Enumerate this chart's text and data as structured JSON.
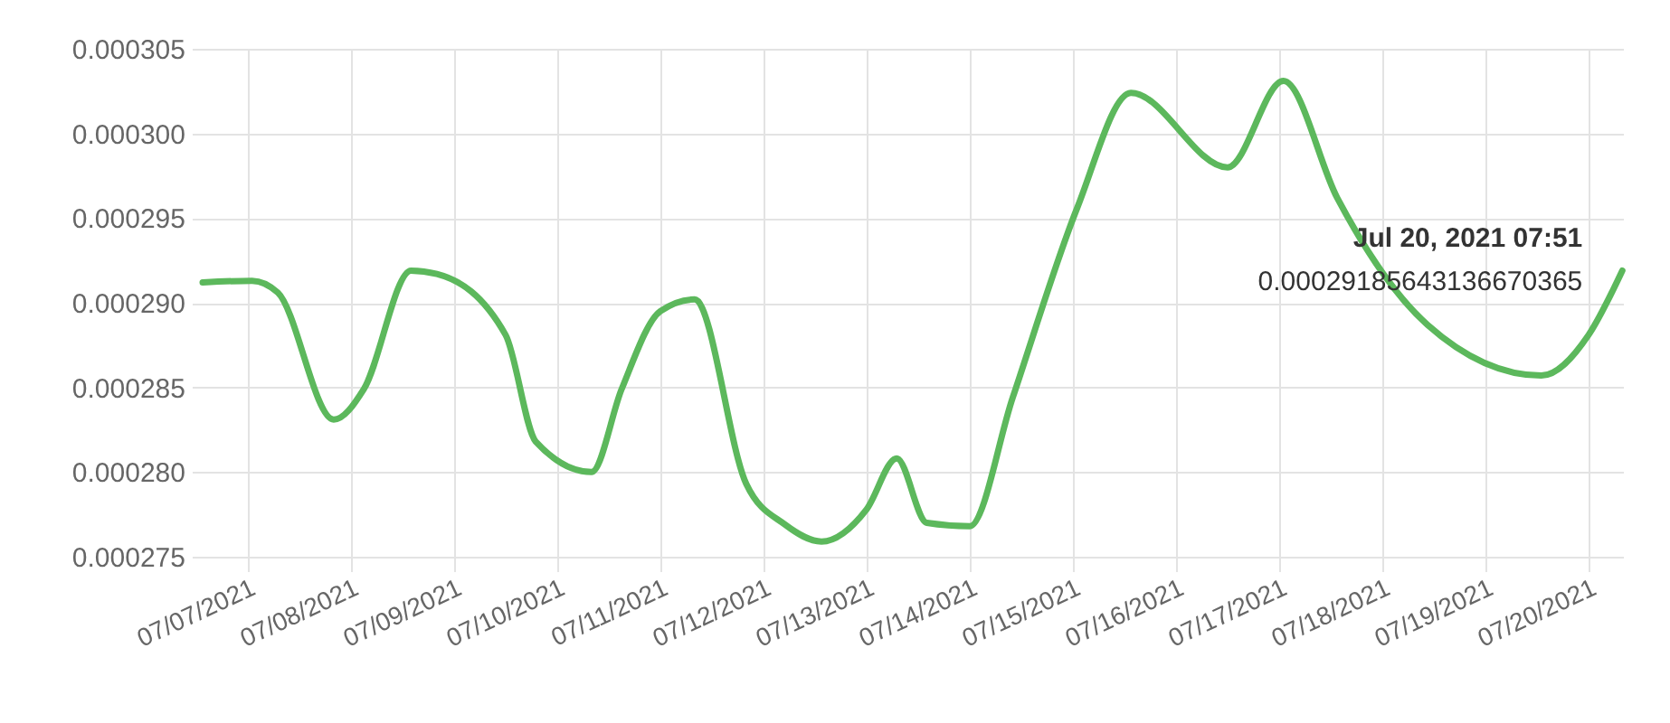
{
  "chart_data": {
    "type": "line",
    "x": [
      "2021-07-06T13:30",
      "2021-07-07T01:00",
      "2021-07-07T07:00",
      "2021-07-07T20:00",
      "2021-07-08T03:00",
      "2021-07-08T14:00",
      "2021-07-08T20:00",
      "2021-07-09T12:00",
      "2021-07-09T19:00",
      "2021-07-10T08:00",
      "2021-07-10T15:00",
      "2021-07-11T00:00",
      "2021-07-11T08:00",
      "2021-07-11T20:00",
      "2021-07-12T05:00",
      "2021-07-12T13:30",
      "2021-07-13T00:00",
      "2021-07-13T07:00",
      "2021-07-13T14:00",
      "2021-07-14T00:00",
      "2021-07-14T10:00",
      "2021-07-15T01:00",
      "2021-07-15T13:30",
      "2021-07-16T12:00",
      "2021-07-17T01:00",
      "2021-07-17T13:30",
      "2021-07-18T10:30",
      "2021-07-19T13:00",
      "2021-07-20T00:00",
      "2021-07-20T07:51"
    ],
    "series": [
      {
        "color": "#5cb85c",
        "values": [
          0.0002912,
          0.0002913,
          0.0002906,
          0.0002831,
          0.0002849,
          0.0002919,
          0.0002917,
          0.0002881,
          0.0002818,
          0.00028,
          0.0002849,
          0.0002895,
          0.0002902,
          0.0002793,
          0.0002769,
          0.0002759,
          0.0002778,
          0.0002808,
          0.000277,
          0.0002768,
          0.0002844,
          0.0002956,
          0.0003024,
          0.000298,
          0.0003031,
          0.0002962,
          0.0002887,
          0.0002857,
          0.0002881,
          0.0002919
        ]
      }
    ],
    "xlim": [
      "2021-07-06T13:30",
      "2021-07-20T08:00"
    ],
    "xticks": [
      {
        "value": "2021-07-07",
        "label": "07/07/2021"
      },
      {
        "value": "2021-07-08",
        "label": "07/08/2021"
      },
      {
        "value": "2021-07-09",
        "label": "07/09/2021"
      },
      {
        "value": "2021-07-10",
        "label": "07/10/2021"
      },
      {
        "value": "2021-07-11",
        "label": "07/11/2021"
      },
      {
        "value": "2021-07-12",
        "label": "07/12/2021"
      },
      {
        "value": "2021-07-13",
        "label": "07/13/2021"
      },
      {
        "value": "2021-07-14",
        "label": "07/14/2021"
      },
      {
        "value": "2021-07-15",
        "label": "07/15/2021"
      },
      {
        "value": "2021-07-16",
        "label": "07/16/2021"
      },
      {
        "value": "2021-07-17",
        "label": "07/17/2021"
      },
      {
        "value": "2021-07-18",
        "label": "07/18/2021"
      },
      {
        "value": "2021-07-19",
        "label": "07/19/2021"
      },
      {
        "value": "2021-07-20",
        "label": "07/20/2021"
      }
    ],
    "ylim": [
      0.000275,
      0.000305
    ],
    "yticks": [
      {
        "value": 0.000275,
        "label": "0.000275"
      },
      {
        "value": 0.00028,
        "label": "0.000280"
      },
      {
        "value": 0.000285,
        "label": "0.000285"
      },
      {
        "value": 0.00029,
        "label": "0.000290"
      },
      {
        "value": 0.000295,
        "label": "0.000295"
      },
      {
        "value": 0.0003,
        "label": "0.000300"
      },
      {
        "value": 0.000305,
        "label": "0.000305"
      }
    ],
    "grid": true,
    "line_style": "solid",
    "marker": "none",
    "annotations": [
      {
        "text": "Jul 20, 2021 07:51",
        "x": "2021-07-20T07:51",
        "y": 0.0002919
      },
      {
        "text": "0.00029185643136670365",
        "x": "2021-07-20T07:51",
        "y": 0.0002919
      }
    ]
  }
}
